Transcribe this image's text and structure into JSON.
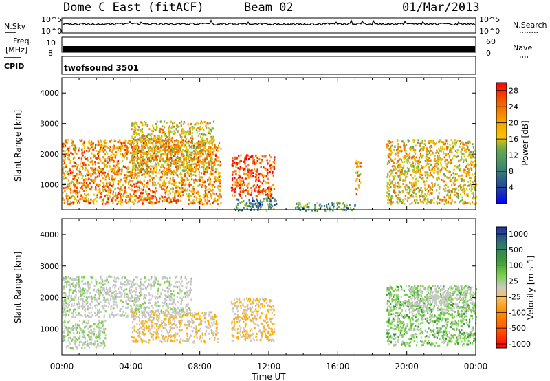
{
  "header": {
    "station": "Dome C East (fitACF)",
    "beam": "Beam 02",
    "date": "01/Mar/2013"
  },
  "top_panels": {
    "nsky_label": "N.Sky",
    "nsky_ticks": [
      "10^5",
      "10^0"
    ],
    "nsearch_label": "N.Search",
    "freq_label_1": "Freq.",
    "freq_label_2": "[MHz]",
    "freq_ticks": [
      "10",
      "8"
    ],
    "nave_ticks": [
      "60",
      "0"
    ],
    "nave_label": "Nave",
    "cpid_label": "CPID",
    "cpid_value": "twofsound 3501"
  },
  "colors": {
    "power_scale": [
      "#0000ff",
      "#1d3f9e",
      "#2f6a8c",
      "#3f8a6e",
      "#6aa84f",
      "#a6cf3c",
      "#f5c400",
      "#f59a00",
      "#f06a00",
      "#e83a00",
      "#ff0000"
    ],
    "velocity_scale": [
      "#ff0000",
      "#ff5500",
      "#ff8800",
      "#ffb000",
      "#c8c8c8",
      "#c8c8c8",
      "#7ad04a",
      "#3f9a3a",
      "#2f7a6a",
      "#2a4aa0",
      "#1e2fa8"
    ]
  },
  "chart_data": [
    {
      "type": "heatmap",
      "title": "",
      "xlabel": "Time UT",
      "ylabel": "Slant Range [km]",
      "xlim": [
        "00:00",
        "00:00"
      ],
      "x_ticks": [
        "00:00",
        "04:00",
        "08:00",
        "12:00",
        "16:00",
        "20:00",
        "00:00"
      ],
      "ylim": [
        180,
        4500
      ],
      "y_ticks": [
        1000,
        2000,
        3000,
        4000
      ],
      "colorbar_label": "Power [dB]",
      "colorbar_ticks": [
        4,
        8,
        12,
        16,
        20,
        24,
        28
      ],
      "colorbar_range": [
        0,
        30
      ],
      "regions": [
        {
          "t0": 0.0,
          "t1": 9.2,
          "r0": 400,
          "r1": 2500,
          "value": 22
        },
        {
          "t0": 4.0,
          "t1": 8.8,
          "r0": 1400,
          "r1": 3100,
          "value": 18
        },
        {
          "t0": 9.8,
          "t1": 12.3,
          "r0": 650,
          "r1": 2000,
          "value": 26
        },
        {
          "t0": 10.0,
          "t1": 12.5,
          "r0": 180,
          "r1": 600,
          "value": 8
        },
        {
          "t0": 13.5,
          "t1": 17.0,
          "r0": 180,
          "r1": 450,
          "value": 10
        },
        {
          "t0": 18.8,
          "t1": 24.0,
          "r0": 400,
          "r1": 2500,
          "value": 18
        },
        {
          "t0": 17.0,
          "t1": 17.3,
          "r0": 700,
          "r1": 1900,
          "value": 20
        }
      ]
    },
    {
      "type": "heatmap",
      "title": "",
      "xlabel": "Time UT",
      "ylabel": "Slant Range [km]",
      "xlim": [
        "00:00",
        "00:00"
      ],
      "x_ticks": [
        "00:00",
        "04:00",
        "08:00",
        "12:00",
        "16:00",
        "20:00",
        "00:00"
      ],
      "ylim": [
        180,
        4500
      ],
      "y_ticks": [
        1000,
        2000,
        3000,
        4000
      ],
      "colorbar_label": "Velocity [m s-1]",
      "colorbar_ticks": [
        1000,
        500,
        100,
        25,
        -25,
        -100,
        -500,
        -1000
      ],
      "regions": [
        {
          "t0": 0.0,
          "t1": 2.5,
          "r0": 400,
          "r1": 1300,
          "value": 100
        },
        {
          "t0": 0.0,
          "t1": 7.5,
          "r0": 1400,
          "r1": 2700,
          "value": 0
        },
        {
          "t0": 4.0,
          "t1": 9.0,
          "r0": 600,
          "r1": 1600,
          "value": -300
        },
        {
          "t0": 9.8,
          "t1": 12.3,
          "r0": 650,
          "r1": 2000,
          "value": -300
        },
        {
          "t0": 18.8,
          "t1": 24.0,
          "r0": 500,
          "r1": 2400,
          "value": 200
        },
        {
          "t0": 20.0,
          "t1": 24.0,
          "r0": 1600,
          "r1": 2400,
          "value": 0
        }
      ]
    }
  ]
}
